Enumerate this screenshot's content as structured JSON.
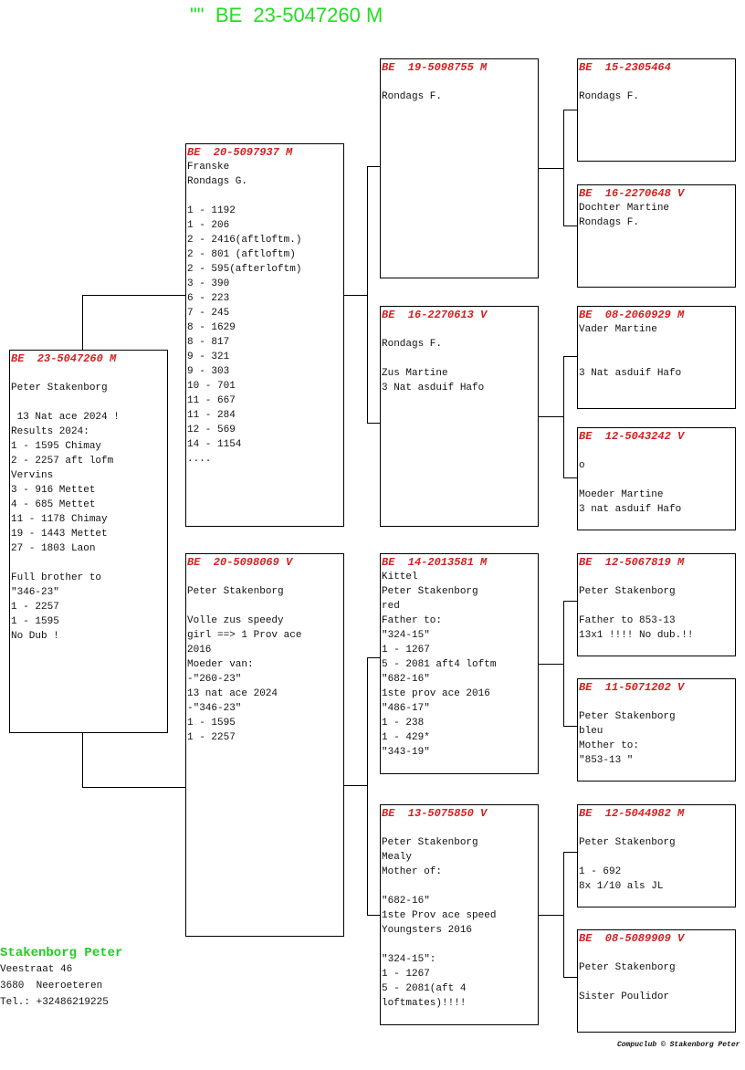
{
  "title": "\"\"  BE  23-5047260 M",
  "boxes": [
    {
      "id": "subject",
      "header": "BE  23-5047260 M",
      "lines": [
        "",
        "Peter Stakenborg",
        "",
        " 13 Nat ace 2024 !",
        "Results 2024:",
        "1 - 1595 Chimay",
        "2 - 2257 aft lofm",
        "Vervins",
        "3 - 916 Mettet",
        "4 - 685 Mettet",
        "11 - 1178 Chimay",
        "19 - 1443 Mettet",
        "27 - 1803 Laon",
        "",
        "Full brother to",
        "\"346-23\"",
        "1 - 2257",
        "1 - 1595",
        "No Dub !"
      ]
    },
    {
      "id": "father",
      "header": "BE  20-5097937 M",
      "lines": [
        "Franske",
        "Rondags G.",
        "",
        "1 - 1192",
        "1 - 206",
        "2 - 2416(aftloftm.)",
        "2 - 801 (aftloftm)",
        "2 - 595(afterloftm)",
        "3 - 390",
        "6 - 223",
        "7 - 245",
        "8 - 1629",
        "8 - 817",
        "9 - 321",
        "9 - 303",
        "10 - 701",
        "11 - 667",
        "11 - 284",
        "12 - 569",
        "14 - 1154",
        "...."
      ]
    },
    {
      "id": "mother",
      "header": "BE  20-5098069 V",
      "lines": [
        "",
        "Peter Stakenborg",
        "",
        "Volle zus speedy",
        "girl ==> 1 Prov ace",
        "2016",
        "Moeder van:",
        "-\"260-23\"",
        "13 nat ace 2024",
        "-\"346-23\"",
        "1 - 1595",
        "1 - 2257"
      ]
    },
    {
      "id": "ff",
      "header": "BE  19-5098755 M",
      "lines": [
        "",
        "Rondags F."
      ]
    },
    {
      "id": "fm",
      "header": "BE  16-2270613 V",
      "lines": [
        "",
        "Rondags F.",
        "",
        "Zus Martine",
        "3 Nat asduif Hafo"
      ]
    },
    {
      "id": "mf",
      "header": "BE  14-2013581 M",
      "lines": [
        "Kittel",
        "Peter Stakenborg",
        "red",
        "Father to:",
        "\"324-15\"",
        "1 - 1267",
        "5 - 2081 aft4 loftm",
        "\"682-16\"",
        "1ste prov ace 2016",
        "\"486-17\"",
        "1 - 238",
        "1 - 429*",
        "\"343-19\""
      ]
    },
    {
      "id": "mm",
      "header": "BE  13-5075850 V",
      "lines": [
        "",
        "Peter Stakenborg",
        "Mealy",
        "Mother of:",
        "",
        "\"682-16\"",
        "1ste Prov ace speed",
        "Youngsters 2016",
        "",
        "\"324-15\":",
        "1 - 1267",
        "5 - 2081(aft 4",
        "loftmates)!!!!"
      ]
    },
    {
      "id": "fff",
      "header": "BE  15-2305464",
      "lines": [
        "",
        "Rondags F."
      ]
    },
    {
      "id": "ffm",
      "header": "BE  16-2270648 V",
      "lines": [
        "Dochter Martine",
        "Rondags F."
      ]
    },
    {
      "id": "fmf",
      "header": "BE  08-2060929 M",
      "lines": [
        "Vader Martine",
        "",
        "",
        "3 Nat asduif Hafo"
      ]
    },
    {
      "id": "fmm",
      "header": "BE  12-5043242 V",
      "lines": [
        "",
        "o",
        "",
        "Moeder Martine",
        "3 nat asduif Hafo"
      ]
    },
    {
      "id": "mff",
      "header": "BE  12-5067819 M",
      "lines": [
        "",
        "Peter Stakenborg",
        "",
        "Father to 853-13",
        "13x1 !!!! No dub.!!"
      ]
    },
    {
      "id": "mfm",
      "header": "BE  11-5071202 V",
      "lines": [
        "",
        "Peter Stakenborg",
        "bleu",
        "Mother to:",
        "\"853-13 \""
      ]
    },
    {
      "id": "mmf",
      "header": "BE  12-5044982 M",
      "lines": [
        "",
        "Peter Stakenborg",
        "",
        "1 - 692",
        "8x 1/10 als JL"
      ]
    },
    {
      "id": "mmm",
      "header": "BE  08-5089909 V",
      "lines": [
        "",
        "Peter Stakenborg",
        "",
        "Sister Poulidor"
      ]
    }
  ],
  "owner": {
    "name": "Stakenborg Peter",
    "street": "Veestraat 46",
    "city": "3680  Neeroeteren",
    "phone": "Tel.: +32486219225"
  },
  "footer": "Compuclub © Stakenborg Peter",
  "colors": {
    "title": "#22dd22",
    "ring": "#d42020"
  }
}
